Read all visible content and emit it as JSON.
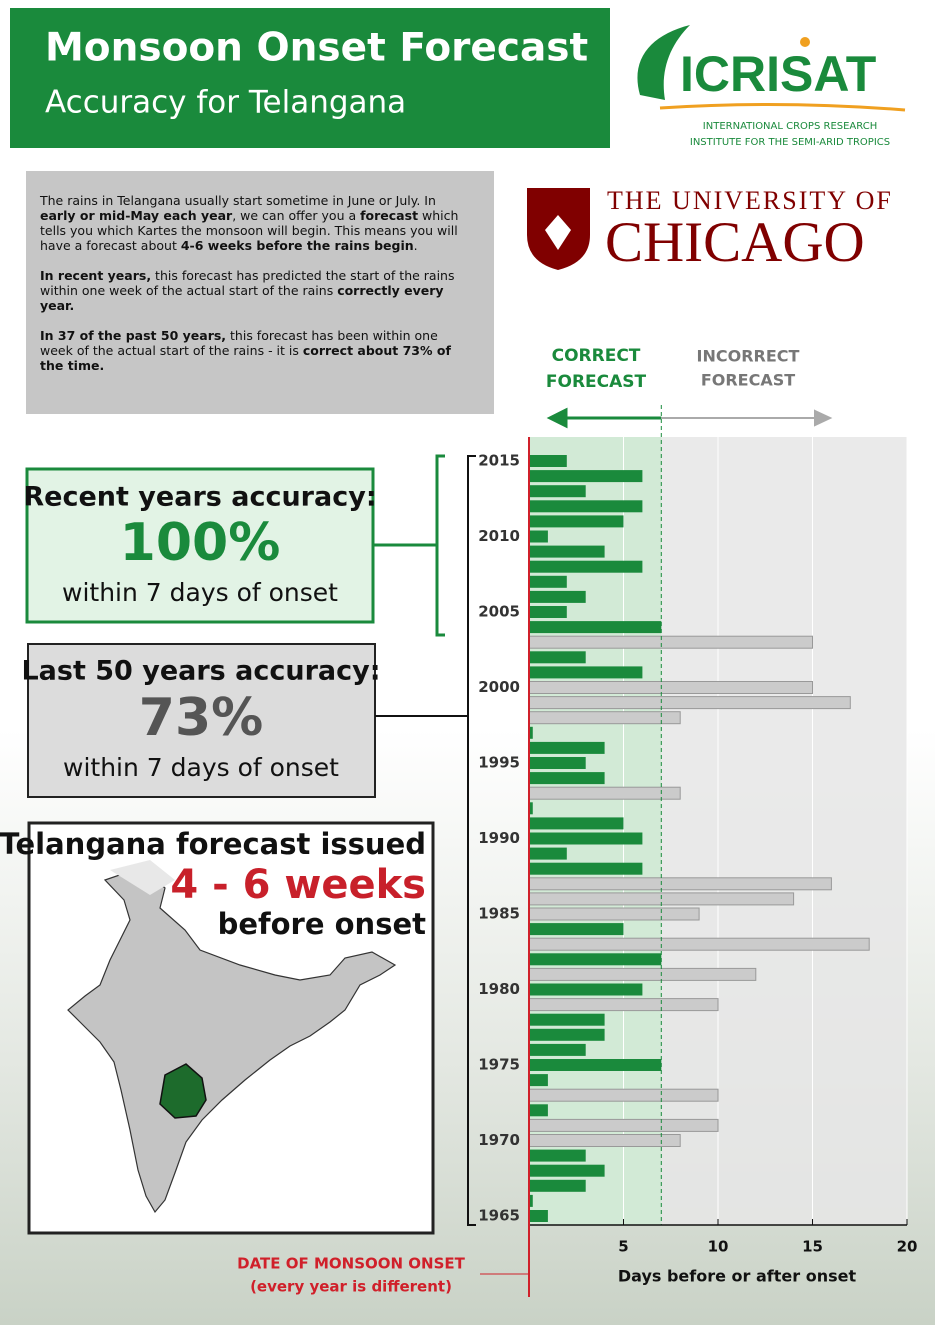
{
  "header": {
    "title": "Monsoon Onset Forecast",
    "subtitle": "Accuracy for Telangana"
  },
  "icrisat": {
    "name": "ICRISAT",
    "line1": "INTERNATIONAL CROPS RESEARCH",
    "line2": "INSTITUTE FOR THE SEMI-ARID TROPICS"
  },
  "chicago": {
    "line1": "THE UNIVERSITY OF",
    "line2": "CHICAGO"
  },
  "intro": [
    [
      {
        "t": "The rains in Telangana usually start sometime in June or July. In ",
        "b": false
      },
      {
        "t": "early or mid-May each year",
        "b": true
      },
      {
        "t": ", we can offer you a ",
        "b": false
      },
      {
        "t": "forecast",
        "b": true
      },
      {
        "t": " which tells you which Kartes the monsoon will begin. This means you will have a forecast about ",
        "b": false
      },
      {
        "t": "4-6 weeks before the rains begin",
        "b": true
      },
      {
        "t": ".",
        "b": false
      }
    ],
    [
      {
        "t": "In recent years,",
        "b": true
      },
      {
        "t": " this forecast has predicted the start of the rains within one week of the actual start of the rains ",
        "b": false
      },
      {
        "t": "correctly every year.",
        "b": true
      }
    ],
    [
      {
        "t": "In 37 of the past 50 years,",
        "b": true
      },
      {
        "t": " this forecast has been within one week of the actual start of the rains - it is ",
        "b": false
      },
      {
        "t": "correct about 73% of the time.",
        "b": true
      }
    ]
  ],
  "recent": {
    "title": "Recent years accuracy:",
    "value": "100%",
    "sub": "within 7 days of onset"
  },
  "last50": {
    "title": "Last 50 years accuracy:",
    "value": "73%",
    "sub": "within 7 days of onset"
  },
  "map": {
    "title": "Telangana forecast issued",
    "value": "4 - 6 weeks",
    "sub": "before onset"
  },
  "chart_data": {
    "type": "bar",
    "orientation": "horizontal",
    "categories": [
      "1965",
      null,
      null,
      null,
      null,
      "1970",
      null,
      null,
      null,
      null,
      "1975",
      null,
      null,
      null,
      null,
      "1980",
      null,
      null,
      null,
      null,
      "1985",
      null,
      null,
      null,
      null,
      "1990",
      null,
      null,
      null,
      null,
      "1995",
      null,
      null,
      null,
      null,
      "2000",
      null,
      null,
      null,
      null,
      "2005",
      null,
      null,
      null,
      null,
      "2010",
      null,
      null,
      null,
      null,
      "2015"
    ],
    "values": [
      1,
      0.2,
      3,
      4,
      3,
      8,
      10,
      1,
      10,
      1,
      7,
      3,
      4,
      4,
      10,
      6,
      12,
      7,
      18,
      5,
      9,
      14,
      16,
      6,
      2,
      6,
      5,
      0.2,
      8,
      4,
      3,
      4,
      0.2,
      8,
      17,
      15,
      6,
      3,
      15,
      7,
      2,
      3,
      2,
      6,
      4,
      1,
      5,
      6,
      3,
      6,
      2
    ],
    "xlim": [
      0,
      20
    ],
    "xticks": [
      5,
      10,
      15,
      20
    ],
    "grid": true,
    "xlabel": "Days before or after onset",
    "threshold": 7,
    "correct_color": "#1a8a3c",
    "incorrect_color": "#cbcbcb",
    "correct_label": [
      "CORRECT",
      "FORECAST"
    ],
    "incorrect_label": [
      "INCORRECT",
      "FORECAST"
    ],
    "onset_label": [
      "DATE OF MONSOON ONSET",
      "(every year is different)"
    ]
  }
}
